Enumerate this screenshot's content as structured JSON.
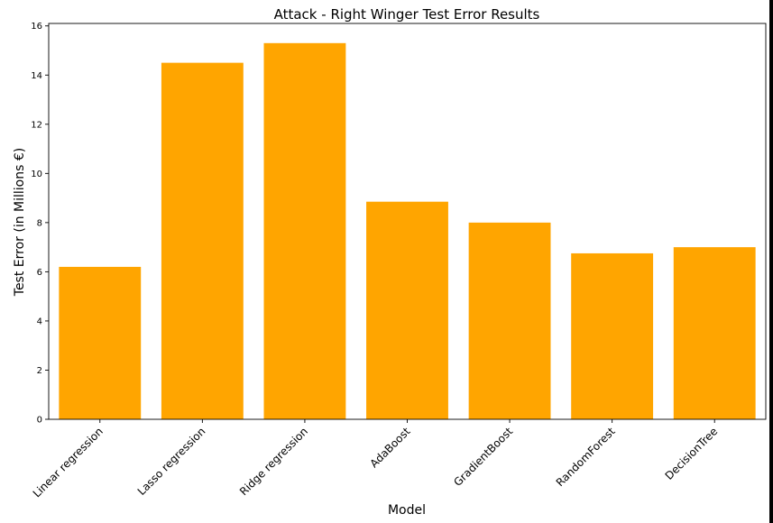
{
  "chart_data": {
    "type": "bar",
    "title": "Attack - Right Winger Test Error Results",
    "xlabel": "Model",
    "ylabel": "Test Error (in Millions €)",
    "categories": [
      "Linear regression",
      "Lasso regression",
      "Ridge regression",
      "AdaBoost",
      "GradientBoost",
      "RandomForest",
      "DecisionTree"
    ],
    "values": [
      6.2,
      14.5,
      15.3,
      8.85,
      8.0,
      6.75,
      7.0
    ],
    "ylim": [
      0,
      16
    ],
    "yticks": [
      0,
      2,
      4,
      6,
      8,
      10,
      12,
      14,
      16
    ],
    "bar_color": "#FFA500",
    "grid": false
  }
}
